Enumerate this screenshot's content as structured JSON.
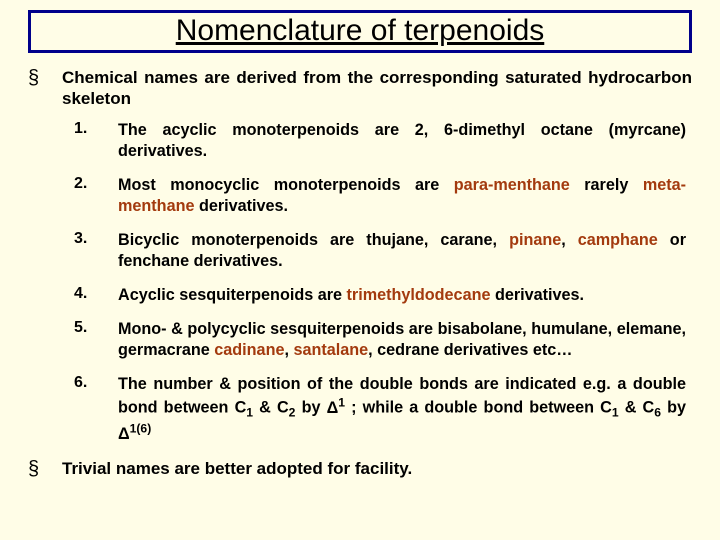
{
  "title": "Nomenclature of terpenoids",
  "intro": {
    "bullet": "§",
    "text": "Chemical names are derived from the corresponding saturated hydrocarbon skeleton"
  },
  "items": [
    {
      "num": "1.",
      "html": "The acyclic monoterpenoids are 2, 6-dimethyl octane (myrcane) derivatives."
    },
    {
      "num": "2.",
      "html": "Most monocyclic monoterpenoids are <span class=\"hl\">para-menthane</span> rarely <span class=\"hl\">meta-menthane</span> derivatives."
    },
    {
      "num": "3.",
      "html": "Bicyclic monoterpenoids are thujane, carane, <span class=\"hl\">pinane</span>, <span class=\"hl\">camphane</span> or fenchane derivatives."
    },
    {
      "num": "4.",
      "html": "Acyclic sesquiterpenoids are <span class=\"hl\">trimethyldodecane</span> derivatives."
    },
    {
      "num": "5.",
      "html": "Mono- &amp; polycyclic sesquiterpenoids are bisabolane, humulane, elemane, germacrane <span class=\"hl\">cadinane</span>, <span class=\"hl\">santalane</span>, cedrane derivatives etc…"
    },
    {
      "num": "6.",
      "html": "The number &amp; position of the double bonds are indicated e.g. a double bond between C<sub>1</sub> &amp; C<sub>2</sub> by <b>Δ<sup>1</sup></b> ; while a double bond between C<sub>1</sub> &amp; C<sub>6</sub> by <b>Δ<sup>1(6)</sup></b>"
    }
  ],
  "footer": {
    "bullet": "§",
    "text": "Trivial names are better adopted for facility."
  },
  "colors": {
    "background": "#fffde7",
    "title_border": "#00008b",
    "highlight": "#a33a0e",
    "text": "#000000"
  }
}
